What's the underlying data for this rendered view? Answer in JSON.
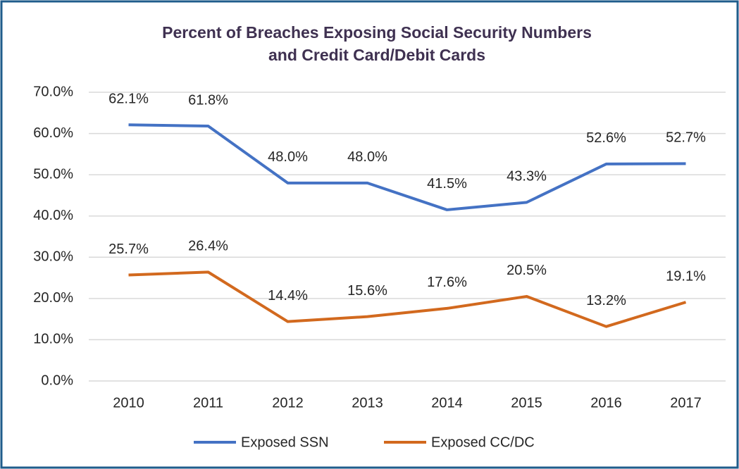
{
  "chart_data": {
    "type": "line",
    "title": [
      "Percent of Breaches Exposing  Social Security Numbers",
      "and Credit Card/Debit Cards"
    ],
    "categories": [
      "2010",
      "2011",
      "2012",
      "2013",
      "2014",
      "2015",
      "2016",
      "2017"
    ],
    "series": [
      {
        "name": "Exposed SSN",
        "color": "#4472c4",
        "values": [
          62.1,
          61.8,
          48.0,
          48.0,
          41.5,
          43.3,
          52.6,
          52.7
        ],
        "value_labels": [
          "62.1%",
          "61.8%",
          "48.0%",
          "48.0%",
          "41.5%",
          "43.3%",
          "52.6%",
          "52.7%"
        ]
      },
      {
        "name": "Exposed CC/DC",
        "color": "#d2691e",
        "values": [
          25.7,
          26.4,
          14.4,
          15.6,
          17.6,
          20.5,
          13.2,
          19.1
        ],
        "value_labels": [
          "25.7%",
          "26.4%",
          "14.4%",
          "15.6%",
          "17.6%",
          "20.5%",
          "13.2%",
          "19.1%"
        ]
      }
    ],
    "ylim": [
      0,
      70
    ],
    "yticks": [
      {
        "value": 0,
        "label": "0.0%"
      },
      {
        "value": 10,
        "label": "10.0%"
      },
      {
        "value": 20,
        "label": "20.0%"
      },
      {
        "value": 30,
        "label": "30.0%"
      },
      {
        "value": 40,
        "label": "40.0%"
      },
      {
        "value": 50,
        "label": "50.0%"
      },
      {
        "value": 60,
        "label": "60.0%"
      },
      {
        "value": 70,
        "label": "70.0%"
      }
    ],
    "grid": true,
    "legend": "bottom"
  }
}
